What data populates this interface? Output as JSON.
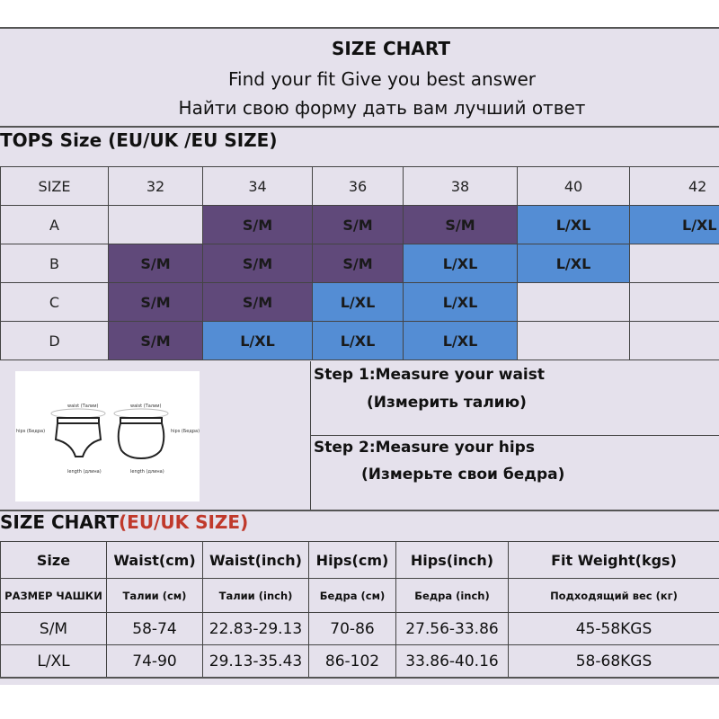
{
  "header": {
    "title": "SIZE CHART",
    "subtitle_en": "Find your fit Give you best answer",
    "subtitle_ru": "Найти свою форму дать вам лучший ответ"
  },
  "tops": {
    "title": "TOPS Size (EU/UK /EU SIZE)",
    "corner": "SIZE",
    "columns": [
      "32",
      "34",
      "36",
      "38",
      "40",
      "42"
    ],
    "rows": [
      {
        "cup": "A",
        "cells": [
          "",
          "S/M",
          "S/M",
          "S/M",
          "L/XL",
          "L/XL"
        ]
      },
      {
        "cup": "B",
        "cells": [
          "S/M",
          "S/M",
          "S/M",
          "L/XL",
          "L/XL",
          ""
        ]
      },
      {
        "cup": "C",
        "cells": [
          "S/M",
          "S/M",
          "L/XL",
          "L/XL",
          "",
          ""
        ]
      },
      {
        "cup": "D",
        "cells": [
          "S/M",
          "L/XL",
          "L/XL",
          "L/XL",
          "",
          ""
        ]
      }
    ],
    "colors": {
      "S/M": "#60497a",
      "L/XL": "#548dd4"
    }
  },
  "diagram": {
    "waist_label": "waist (Талии)",
    "hips_label": "hips (Бедра)",
    "length_label": "length (длина)"
  },
  "steps": [
    {
      "label": "Step 1:Measure your waist",
      "ru": "(Измерить талию)"
    },
    {
      "label": "Step 2:Measure your hips",
      "ru": "(Измерьте свои бедра)"
    }
  ],
  "size_chart": {
    "title": "SIZE CHART",
    "title_suffix": "(EU/UK SIZE)",
    "headers": [
      "Size",
      "Waist(cm)",
      "Waist(inch)",
      "Hips(cm)",
      "Hips(inch)",
      "Fit  Weight(kgs)"
    ],
    "headers_ru": [
      "РАЗМЕР ЧАШКИ",
      "Талии (см)",
      "Талии (inch)",
      "Бедра (см)",
      "Бедра (inch)",
      "Подходящий вес (кг)"
    ],
    "rows": [
      [
        "S/M",
        "58-74",
        "22.83-29.13",
        "70-86",
        "27.56-33.86",
        "45-58KGS"
      ],
      [
        "L/XL",
        "74-90",
        "29.13-35.43",
        "86-102",
        "33.86-40.16",
        "58-68KGS"
      ]
    ]
  }
}
